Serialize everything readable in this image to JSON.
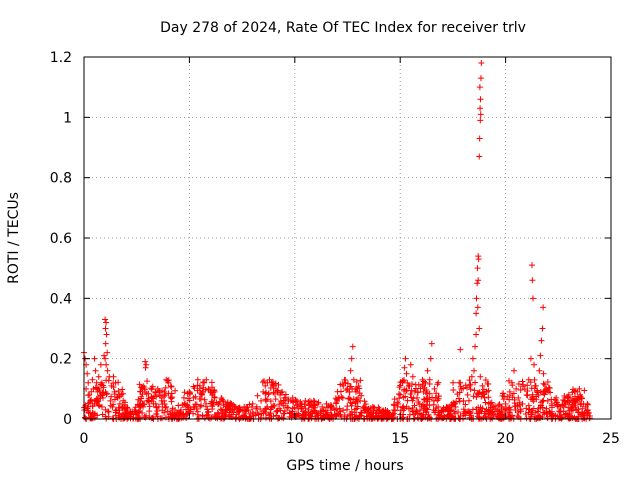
{
  "chart_data": {
    "type": "scatter",
    "title": "Day 278 of 2024, Rate Of TEC Index for receiver trlv",
    "xlabel": "GPS time / hours",
    "ylabel": "ROTI / TECUs",
    "xlim": [
      0,
      25
    ],
    "ylim": [
      0,
      1.2
    ],
    "xticks": [
      0,
      5,
      10,
      15,
      20,
      25
    ],
    "yticks": [
      0,
      0.2,
      0.4,
      0.6,
      0.8,
      1,
      1.2
    ],
    "xtick_labels": [
      "0",
      "5",
      "10",
      "15",
      "20",
      "25"
    ],
    "ytick_labels": [
      "0",
      "0.2",
      "0.4",
      "0.6",
      "0.8",
      "1",
      "1.2"
    ],
    "grid": true,
    "marker": "+",
    "color": "#ff0000",
    "series": [
      {
        "name": "ROTI",
        "points": [
          [
            0.0,
            0.22
          ],
          [
            0.05,
            0.2
          ],
          [
            0.1,
            0.18
          ],
          [
            0.15,
            0.15
          ],
          [
            0.2,
            0.12
          ],
          [
            0.1,
            0.1
          ],
          [
            0.25,
            0.08
          ],
          [
            0.3,
            0.06
          ],
          [
            0.02,
            0.03
          ],
          [
            0.2,
            0.04
          ],
          [
            0.4,
            0.13
          ],
          [
            0.5,
            0.2
          ],
          [
            0.55,
            0.16
          ],
          [
            0.6,
            0.12
          ],
          [
            0.65,
            0.09
          ],
          [
            0.7,
            0.14
          ],
          [
            0.45,
            0.1
          ],
          [
            0.8,
            0.18
          ],
          [
            0.85,
            0.12
          ],
          [
            0.9,
            0.07
          ],
          [
            0.95,
            0.21
          ],
          [
            1.0,
            0.2
          ],
          [
            1.05,
            0.18
          ],
          [
            1.0,
            0.33
          ],
          [
            1.05,
            0.32
          ],
          [
            1.02,
            0.3
          ],
          [
            1.07,
            0.28
          ],
          [
            1.03,
            0.25
          ],
          [
            1.1,
            0.22
          ],
          [
            1.12,
            0.16
          ],
          [
            1.2,
            0.14
          ],
          [
            1.3,
            0.11
          ],
          [
            1.4,
            0.14
          ],
          [
            1.5,
            0.12
          ],
          [
            1.45,
            0.09
          ],
          [
            1.6,
            0.07
          ],
          [
            1.25,
            0.06
          ],
          [
            1.7,
            0.05
          ],
          [
            1.35,
            0.04
          ],
          [
            1.55,
            0.03
          ],
          [
            1.8,
            0.04
          ],
          [
            2.0,
            0.03
          ],
          [
            2.2,
            0.02
          ],
          [
            2.4,
            0.03
          ],
          [
            2.6,
            0.02
          ],
          [
            2.8,
            0.04
          ],
          [
            2.9,
            0.19
          ],
          [
            2.95,
            0.18
          ],
          [
            2.92,
            0.17
          ],
          [
            3.0,
            0.06
          ],
          [
            3.2,
            0.07
          ],
          [
            3.4,
            0.09
          ],
          [
            3.5,
            0.1
          ],
          [
            3.6,
            0.08
          ],
          [
            3.7,
            0.07
          ],
          [
            3.8,
            0.06
          ],
          [
            3.9,
            0.13
          ],
          [
            4.0,
            0.12
          ],
          [
            3.3,
            0.05
          ],
          [
            3.55,
            0.04
          ],
          [
            4.2,
            0.03
          ],
          [
            4.4,
            0.02
          ],
          [
            4.6,
            0.03
          ],
          [
            4.8,
            0.05
          ],
          [
            5.0,
            0.09
          ],
          [
            5.2,
            0.07
          ],
          [
            5.4,
            0.13
          ],
          [
            5.5,
            0.11
          ],
          [
            5.6,
            0.08
          ],
          [
            5.7,
            0.12
          ],
          [
            5.8,
            0.13
          ],
          [
            5.9,
            0.1
          ],
          [
            6.0,
            0.09
          ],
          [
            6.2,
            0.07
          ],
          [
            6.4,
            0.05
          ],
          [
            6.6,
            0.06
          ],
          [
            6.8,
            0.04
          ],
          [
            7.0,
            0.05
          ],
          [
            7.2,
            0.04
          ],
          [
            7.4,
            0.03
          ],
          [
            7.6,
            0.04
          ],
          [
            7.8,
            0.03
          ],
          [
            8.0,
            0.05
          ],
          [
            8.2,
            0.04
          ],
          [
            8.4,
            0.06
          ],
          [
            8.5,
            0.09
          ],
          [
            8.6,
            0.11
          ],
          [
            8.7,
            0.12
          ],
          [
            8.8,
            0.13
          ],
          [
            8.9,
            0.12
          ],
          [
            9.0,
            0.11
          ],
          [
            9.1,
            0.1
          ],
          [
            9.2,
            0.09
          ],
          [
            9.3,
            0.08
          ],
          [
            9.4,
            0.09
          ],
          [
            9.5,
            0.07
          ],
          [
            9.7,
            0.06
          ],
          [
            9.9,
            0.07
          ],
          [
            10.1,
            0.06
          ],
          [
            10.3,
            0.05
          ],
          [
            10.5,
            0.06
          ],
          [
            10.7,
            0.05
          ],
          [
            10.9,
            0.06
          ],
          [
            11.1,
            0.05
          ],
          [
            11.3,
            0.04
          ],
          [
            11.5,
            0.05
          ],
          [
            11.7,
            0.04
          ],
          [
            11.9,
            0.03
          ],
          [
            12.1,
            0.07
          ],
          [
            12.3,
            0.11
          ],
          [
            12.4,
            0.12
          ],
          [
            12.5,
            0.1
          ],
          [
            12.6,
            0.09
          ],
          [
            12.65,
            0.16
          ],
          [
            12.7,
            0.2
          ],
          [
            12.75,
            0.24
          ],
          [
            12.8,
            0.13
          ],
          [
            12.9,
            0.09
          ],
          [
            13.0,
            0.07
          ],
          [
            13.1,
            0.06
          ],
          [
            13.3,
            0.04
          ],
          [
            13.5,
            0.03
          ],
          [
            13.7,
            0.04
          ],
          [
            13.9,
            0.03
          ],
          [
            14.1,
            0.02
          ],
          [
            14.3,
            0.03
          ],
          [
            14.5,
            0.02
          ],
          [
            14.7,
            0.03
          ],
          [
            14.9,
            0.05
          ],
          [
            15.0,
            0.08
          ],
          [
            15.1,
            0.12
          ],
          [
            15.2,
            0.17
          ],
          [
            15.25,
            0.2
          ],
          [
            15.3,
            0.15
          ],
          [
            15.4,
            0.11
          ],
          [
            15.5,
            0.18
          ],
          [
            15.6,
            0.14
          ],
          [
            15.7,
            0.09
          ],
          [
            15.8,
            0.07
          ],
          [
            15.9,
            0.05
          ],
          [
            16.1,
            0.09
          ],
          [
            16.2,
            0.12
          ],
          [
            16.3,
            0.16
          ],
          [
            16.4,
            0.13
          ],
          [
            16.5,
            0.25
          ],
          [
            16.45,
            0.2
          ],
          [
            16.6,
            0.06
          ],
          [
            16.8,
            0.04
          ],
          [
            17.0,
            0.03
          ],
          [
            17.2,
            0.04
          ],
          [
            17.4,
            0.03
          ],
          [
            17.6,
            0.05
          ],
          [
            17.8,
            0.12
          ],
          [
            17.85,
            0.23
          ],
          [
            17.9,
            0.1
          ],
          [
            18.0,
            0.06
          ],
          [
            18.2,
            0.08
          ],
          [
            18.3,
            0.11
          ],
          [
            18.4,
            0.14
          ],
          [
            18.45,
            0.2
          ],
          [
            18.5,
            0.16
          ],
          [
            18.55,
            0.24
          ],
          [
            18.6,
            0.28
          ],
          [
            18.6,
            0.35
          ],
          [
            18.62,
            0.4
          ],
          [
            18.65,
            0.45
          ],
          [
            18.67,
            0.5
          ],
          [
            18.7,
            0.54
          ],
          [
            18.72,
            0.53
          ],
          [
            18.7,
            0.46
          ],
          [
            18.68,
            0.37
          ],
          [
            18.75,
            0.3
          ],
          [
            18.8,
            0.14
          ],
          [
            18.75,
            0.87
          ],
          [
            18.77,
            0.93
          ],
          [
            18.8,
            0.99
          ],
          [
            18.82,
            1.01
          ],
          [
            18.79,
            1.03
          ],
          [
            18.81,
            1.06
          ],
          [
            18.78,
            1.1
          ],
          [
            18.83,
            1.13
          ],
          [
            18.85,
            1.18
          ],
          [
            18.9,
            0.11
          ],
          [
            19.0,
            0.07
          ],
          [
            19.2,
            0.05
          ],
          [
            19.4,
            0.04
          ],
          [
            19.6,
            0.03
          ],
          [
            19.8,
            0.04
          ],
          [
            20.0,
            0.05
          ],
          [
            20.2,
            0.09
          ],
          [
            20.3,
            0.12
          ],
          [
            20.4,
            0.16
          ],
          [
            20.5,
            0.1
          ],
          [
            20.6,
            0.07
          ],
          [
            20.8,
            0.05
          ],
          [
            21.0,
            0.08
          ],
          [
            21.1,
            0.13
          ],
          [
            21.2,
            0.2
          ],
          [
            21.25,
            0.51
          ],
          [
            21.27,
            0.46
          ],
          [
            21.3,
            0.4
          ],
          [
            21.35,
            0.18
          ],
          [
            21.4,
            0.11
          ],
          [
            21.5,
            0.09
          ],
          [
            21.6,
            0.16
          ],
          [
            21.65,
            0.21
          ],
          [
            21.7,
            0.26
          ],
          [
            21.75,
            0.3
          ],
          [
            21.78,
            0.37
          ],
          [
            21.8,
            0.15
          ],
          [
            21.9,
            0.09
          ],
          [
            22.0,
            0.06
          ],
          [
            22.2,
            0.05
          ],
          [
            22.4,
            0.07
          ],
          [
            22.6,
            0.04
          ],
          [
            22.8,
            0.06
          ],
          [
            23.0,
            0.08
          ],
          [
            23.2,
            0.06
          ],
          [
            23.4,
            0.09
          ],
          [
            23.5,
            0.1
          ],
          [
            23.6,
            0.07
          ],
          [
            23.7,
            0.05
          ],
          [
            23.8,
            0.04
          ],
          [
            23.9,
            0.03
          ],
          [
            23.95,
            0.02
          ],
          [
            24.0,
            0.01
          ]
        ]
      }
    ]
  }
}
